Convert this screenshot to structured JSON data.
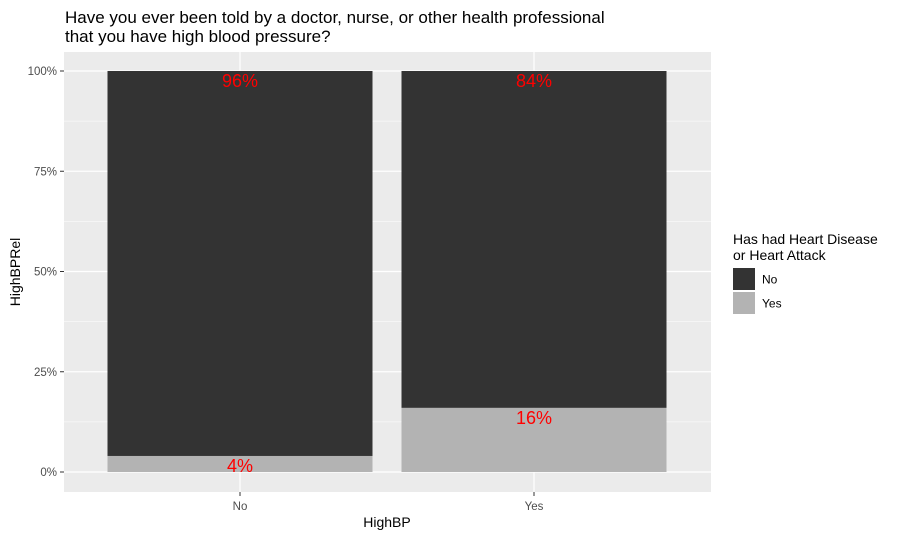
{
  "chart_data": {
    "type": "bar",
    "stacked": true,
    "title_lines": [
      "Have you ever been told by a doctor, nurse, or other health professional",
      "that you have high blood pressure?"
    ],
    "xlabel": "HighBP",
    "ylabel": "HighBPRel",
    "categories": [
      "No",
      "Yes"
    ],
    "ylim": [
      0,
      1
    ],
    "y_ticks": [
      0,
      0.25,
      0.5,
      0.75,
      1
    ],
    "y_tick_labels": [
      "0%",
      "25%",
      "50%",
      "75%",
      "100%"
    ],
    "legend": {
      "title_lines": [
        "Has had Heart Disease",
        "or Heart Attack"
      ],
      "position": "right"
    },
    "series": [
      {
        "name": "Yes",
        "color": "#b3b3b3",
        "values": [
          0.04,
          0.16
        ],
        "labels": [
          "4%",
          "16%"
        ]
      },
      {
        "name": "No",
        "color": "#333333",
        "values": [
          0.96,
          0.84
        ],
        "labels": [
          "96%",
          "84%"
        ]
      }
    ],
    "legend_order": [
      "No",
      "Yes"
    ],
    "label_color": "#ff0000",
    "panel_background": "#ebebeb",
    "grid": true
  }
}
